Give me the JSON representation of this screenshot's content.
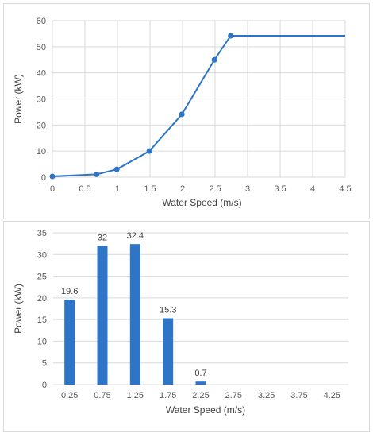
{
  "chart_data": [
    {
      "type": "line",
      "xlabel": "Water Speed (m/s)",
      "ylabel": "Power (kW)",
      "xlim": [
        0,
        4.5
      ],
      "ylim": [
        0,
        60
      ],
      "xticks": [
        0,
        0.5,
        1,
        1.5,
        2,
        2.5,
        3,
        3.5,
        4,
        4.5
      ],
      "yticks": [
        0,
        10,
        20,
        30,
        40,
        50,
        60
      ],
      "grid": true,
      "color": "#2e75c7",
      "series": [
        {
          "x": [
            0,
            0.68,
            0.99,
            1.49,
            1.99,
            2.49,
            2.74,
            4.5
          ],
          "y": [
            0.3,
            1.1,
            3.0,
            10.0,
            24.1,
            45.0,
            54.2,
            54.2
          ],
          "markers": [
            true,
            true,
            true,
            true,
            true,
            true,
            true,
            false
          ]
        }
      ]
    },
    {
      "type": "bar",
      "xlabel": "Water Speed (m/s)",
      "ylabel": "Power (kW)",
      "ylim": [
        0,
        35
      ],
      "yticks": [
        0,
        5,
        10,
        15,
        20,
        25,
        30,
        35
      ],
      "grid": true,
      "color": "#2e75c7",
      "categories": [
        "0.25",
        "0.75",
        "1.25",
        "1.75",
        "2.25",
        "2.75",
        "3.25",
        "3.75",
        "4.25"
      ],
      "values": [
        19.6,
        32,
        32.4,
        15.3,
        0.7,
        0,
        0,
        0,
        0
      ],
      "data_labels": [
        "19.6",
        "32",
        "32.4",
        "15.3",
        "0.7",
        "",
        "",
        "",
        ""
      ]
    }
  ]
}
